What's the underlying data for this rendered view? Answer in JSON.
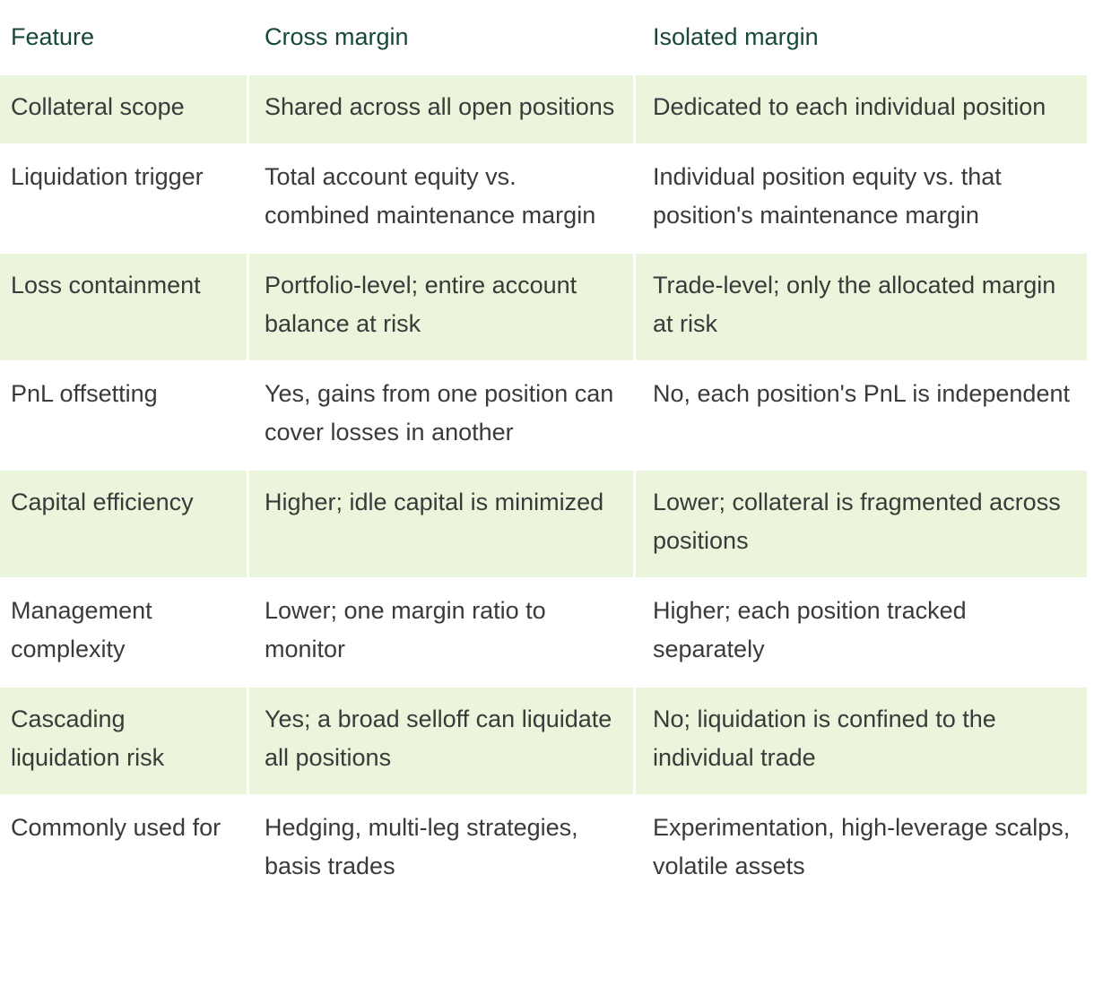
{
  "table": {
    "header": [
      "Feature",
      "Cross margin",
      "Isolated margin"
    ],
    "rows": [
      [
        "Collateral scope",
        "Shared across all open positions",
        "Dedicated to each individual position"
      ],
      [
        "Liquidation trigger",
        "Total account equity vs. combined maintenance margin",
        "Individual position equity vs. that position's maintenance margin"
      ],
      [
        "Loss containment",
        "Portfolio-level; entire account balance at risk",
        "Trade-level; only the allocated margin at risk"
      ],
      [
        "PnL offsetting",
        "Yes, gains from one position can cover losses in another",
        "No, each position's PnL is independent"
      ],
      [
        "Capital efficiency",
        "Higher; idle capital is minimized",
        "Lower; collateral is fragmented across positions"
      ],
      [
        "Management complexity",
        "Lower; one margin ratio to monitor",
        "Higher; each position tracked separately"
      ],
      [
        "Cascading liquidation risk",
        "Yes; a broad selloff can liquidate all positions",
        "No; liquidation is confined to the individual trade"
      ],
      [
        "Commonly used for",
        "Hedging, multi-leg strategies, basis trades",
        "Experimentation, high-leverage scalps, volatile assets"
      ]
    ]
  }
}
